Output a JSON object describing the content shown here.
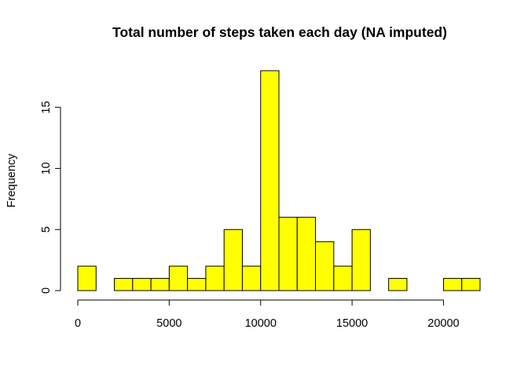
{
  "chart_data": {
    "type": "bar",
    "title": "Total number of steps taken each day (NA imputed)",
    "xlabel": "",
    "ylabel": "Frequency",
    "bar_color": "#ffff00",
    "bin_width": 1000,
    "bins": [
      {
        "x0": 0,
        "x1": 1000,
        "count": 2
      },
      {
        "x0": 1000,
        "x1": 2000,
        "count": 0
      },
      {
        "x0": 2000,
        "x1": 3000,
        "count": 1
      },
      {
        "x0": 3000,
        "x1": 4000,
        "count": 1
      },
      {
        "x0": 4000,
        "x1": 5000,
        "count": 1
      },
      {
        "x0": 5000,
        "x1": 6000,
        "count": 2
      },
      {
        "x0": 6000,
        "x1": 7000,
        "count": 1
      },
      {
        "x0": 7000,
        "x1": 8000,
        "count": 2
      },
      {
        "x0": 8000,
        "x1": 9000,
        "count": 5
      },
      {
        "x0": 9000,
        "x1": 10000,
        "count": 2
      },
      {
        "x0": 10000,
        "x1": 11000,
        "count": 18
      },
      {
        "x0": 11000,
        "x1": 12000,
        "count": 6
      },
      {
        "x0": 12000,
        "x1": 13000,
        "count": 6
      },
      {
        "x0": 13000,
        "x1": 14000,
        "count": 4
      },
      {
        "x0": 14000,
        "x1": 15000,
        "count": 2
      },
      {
        "x0": 15000,
        "x1": 16000,
        "count": 5
      },
      {
        "x0": 16000,
        "x1": 17000,
        "count": 0
      },
      {
        "x0": 17000,
        "x1": 18000,
        "count": 1
      },
      {
        "x0": 18000,
        "x1": 19000,
        "count": 0
      },
      {
        "x0": 19000,
        "x1": 20000,
        "count": 0
      },
      {
        "x0": 20000,
        "x1": 21000,
        "count": 1
      },
      {
        "x0": 21000,
        "x1": 22000,
        "count": 1
      }
    ],
    "xlim": [
      0,
      22000
    ],
    "ylim": [
      0,
      18
    ],
    "x_ticks": [
      0,
      5000,
      10000,
      15000,
      20000
    ],
    "y_ticks": [
      0,
      5,
      10,
      15
    ],
    "grid": false,
    "legend": "none"
  }
}
